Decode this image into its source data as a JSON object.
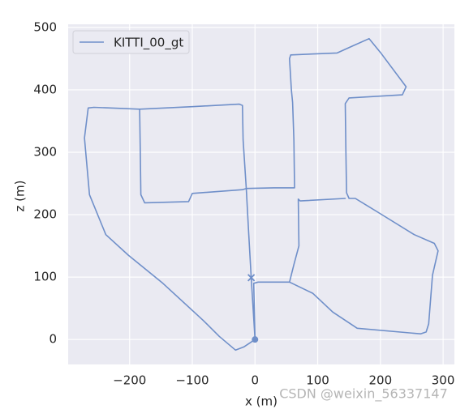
{
  "chart_data": {
    "type": "line",
    "xlabel": "x (m)",
    "ylabel": "z (m)",
    "x": [
      0,
      -18,
      -31,
      -57,
      -83,
      -147,
      -202,
      -238,
      -264,
      -272,
      -266,
      -257,
      -184,
      -183,
      -182,
      -176,
      -106,
      -100,
      -20,
      -14,
      -10,
      -6,
      -10,
      -14,
      -19,
      -20,
      -25,
      -100,
      -184,
      -100,
      -25,
      -20,
      -19,
      -14,
      30,
      63,
      62,
      60,
      58,
      55,
      57,
      131,
      155,
      182,
      200,
      241,
      235,
      150,
      144,
      145,
      146,
      150,
      160,
      196,
      254,
      286,
      292,
      283,
      277,
      273,
      264,
      163,
      124,
      92,
      55,
      62,
      70,
      69,
      72,
      144,
      72,
      69,
      70,
      62,
      55,
      5,
      -2,
      0,
      -6
    ],
    "series": [
      {
        "name": "KITTI_00_gt",
        "color": "#6f8fc9",
        "values": [
          0,
          -12,
          -17,
          5,
          31,
          90,
          135,
          168,
          232,
          323,
          371,
          372,
          369,
          300,
          232,
          219,
          221,
          234,
          240,
          242,
          170,
          99,
          170,
          242,
          320,
          375,
          377,
          373,
          369,
          373,
          377,
          375,
          320,
          242,
          243,
          243,
          320,
          380,
          400,
          450,
          456,
          459,
          470,
          482,
          460,
          405,
          392,
          387,
          378,
          300,
          235,
          226,
          226,
          204,
          168,
          154,
          142,
          103,
          25,
          12,
          9,
          18,
          44,
          74,
          92,
          120,
          150,
          225,
          222,
          226,
          222,
          225,
          150,
          120,
          92,
          92,
          90,
          0,
          99
        ]
      }
    ],
    "xlim": [
      -298,
      318
    ],
    "ylim": [
      -40,
      505
    ],
    "xticks": [
      {
        "value": -200,
        "label": "−200"
      },
      {
        "value": -100,
        "label": "−100"
      },
      0,
      100,
      200,
      300
    ],
    "yticks": [
      0,
      100,
      200,
      300,
      400,
      500
    ],
    "grid": true,
    "legend": "upper left",
    "watermark": "CSDN @weixin_56337147"
  }
}
